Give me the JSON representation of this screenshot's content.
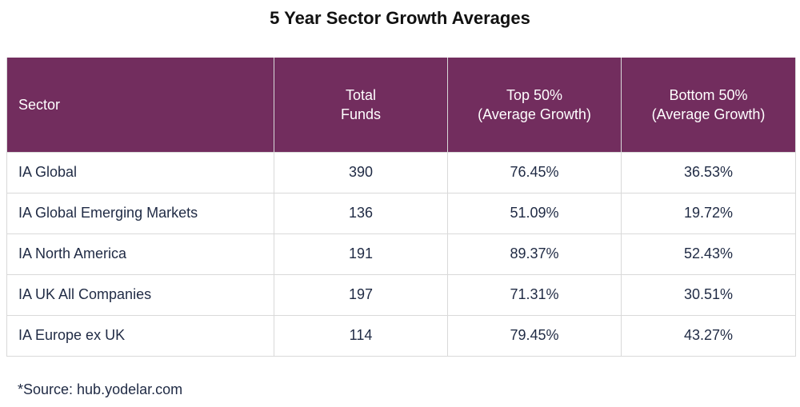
{
  "title": "5 Year Sector Growth Averages",
  "headers": {
    "sector": "Sector",
    "total_funds": "Total\nFunds",
    "top_50": "Top 50%\n(Average Growth)",
    "bottom_50": "Bottom 50%\n(Average Growth)"
  },
  "rows": [
    {
      "sector": "IA Global",
      "total_funds": "390",
      "top_50": "76.45%",
      "bottom_50": "36.53%"
    },
    {
      "sector": "IA Global Emerging Markets",
      "total_funds": "136",
      "top_50": "51.09%",
      "bottom_50": "19.72%"
    },
    {
      "sector": "IA North America",
      "total_funds": "191",
      "top_50": "89.37%",
      "bottom_50": "52.43%"
    },
    {
      "sector": "IA UK All Companies",
      "total_funds": "197",
      "top_50": "71.31%",
      "bottom_50": "30.51%"
    },
    {
      "sector": "IA Europe ex UK",
      "total_funds": "114",
      "top_50": "79.45%",
      "bottom_50": "43.27%"
    }
  ],
  "source": "*Source: hub.yodelar.com",
  "colors": {
    "header_bg": "#722d5e",
    "header_text": "#ffffff",
    "body_text": "#1f2a44",
    "border": "#d9d9d9"
  }
}
